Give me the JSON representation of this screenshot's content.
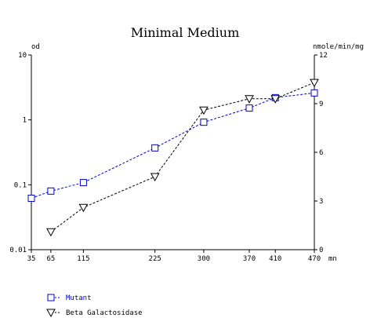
{
  "chart_data": {
    "type": "line",
    "title": "Minimal Medium",
    "xlabel": "mn",
    "y_left_label": "od",
    "y_right_label": "nmole/min/mg",
    "x_ticks": [
      35,
      65,
      115,
      225,
      300,
      370,
      410,
      470
    ],
    "x_range": [
      35,
      470
    ],
    "y_left_scale": "log",
    "y_left_range": [
      0.01,
      10
    ],
    "y_left_ticks": [
      0.01,
      0.1,
      1,
      10
    ],
    "y_left_tick_labels": [
      "0.01",
      "0.1",
      "1",
      "10"
    ],
    "y_right_scale": "linear",
    "y_right_range": [
      0,
      12
    ],
    "y_right_ticks": [
      0,
      3,
      6,
      9,
      12
    ],
    "y_right_tick_labels": [
      "0",
      "3",
      "6",
      "9",
      "12"
    ],
    "grid": false,
    "legend_position": "bottom-left",
    "series": [
      {
        "name": "Mutant",
        "axis": "left",
        "marker": "square",
        "color": "#0000cc",
        "x": [
          35,
          65,
          115,
          225,
          300,
          370,
          410,
          470
        ],
        "y": [
          0.062,
          0.08,
          0.108,
          0.37,
          0.92,
          1.52,
          2.2,
          2.6
        ]
      },
      {
        "name": "Beta Galactosidase",
        "axis": "right",
        "marker": "triangle-down",
        "color": "#000000",
        "x": [
          65,
          115,
          225,
          300,
          370,
          410,
          470
        ],
        "y": [
          1.1,
          2.6,
          4.5,
          8.6,
          9.3,
          9.3,
          10.3
        ]
      }
    ]
  }
}
